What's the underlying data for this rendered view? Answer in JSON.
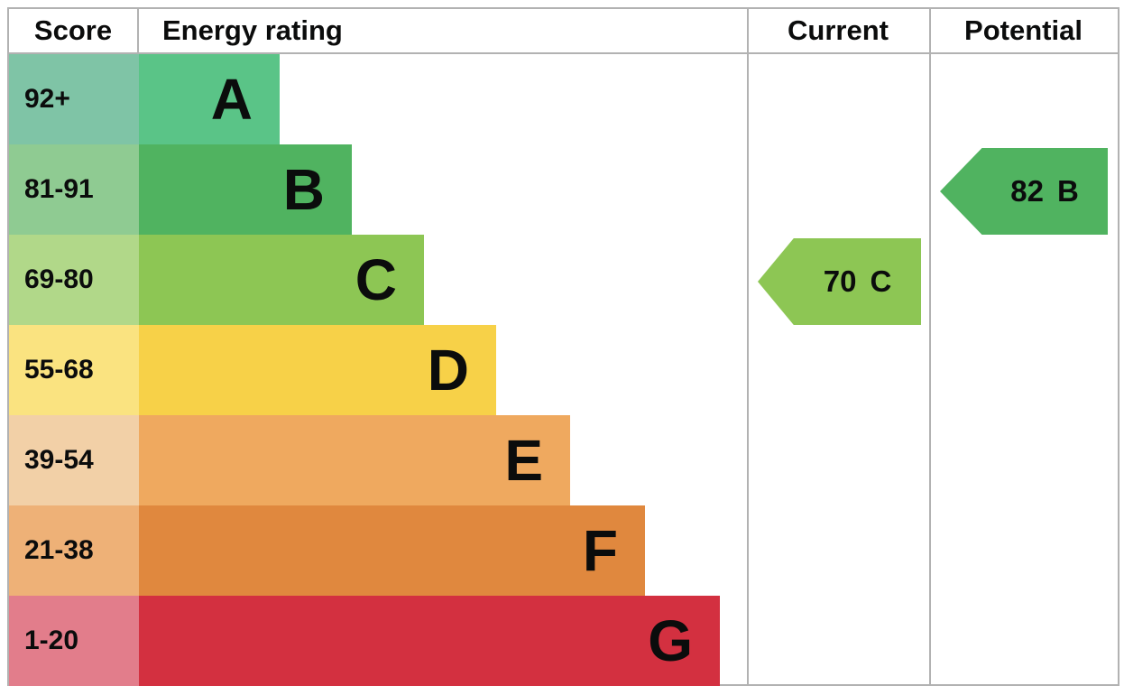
{
  "header": {
    "score": "Score",
    "energy_rating": "Energy rating",
    "current": "Current",
    "potential": "Potential"
  },
  "chart_data": {
    "type": "bar",
    "title": "Energy efficiency rating chart (EPC)",
    "categories": [
      "A",
      "B",
      "C",
      "D",
      "E",
      "F",
      "G"
    ],
    "bands": [
      {
        "score": "92+",
        "letter": "A",
        "cell_color": "#7fc4a6",
        "bar_color": "#5ac487"
      },
      {
        "score": "81-91",
        "letter": "B",
        "cell_color": "#8fcb92",
        "bar_color": "#50b360"
      },
      {
        "score": "69-80",
        "letter": "C",
        "cell_color": "#b1d889",
        "bar_color": "#8dc654"
      },
      {
        "score": "55-68",
        "letter": "D",
        "cell_color": "#fae380",
        "bar_color": "#f7d148"
      },
      {
        "score": "39-54",
        "letter": "E",
        "cell_color": "#f2d0a7",
        "bar_color": "#efa95f"
      },
      {
        "score": "21-38",
        "letter": "F",
        "cell_color": "#eeb177",
        "bar_color": "#e0883e"
      },
      {
        "score": "1-20",
        "letter": "G",
        "cell_color": "#e27d8b",
        "bar_color": "#d33040"
      }
    ],
    "current": {
      "value": "70",
      "letter": "C",
      "color": "#8dc654"
    },
    "potential": {
      "value": "82",
      "letter": "B",
      "color": "#50b360"
    },
    "border_color": "#b2b2b2",
    "legend_position": "none",
    "grid": false
  }
}
